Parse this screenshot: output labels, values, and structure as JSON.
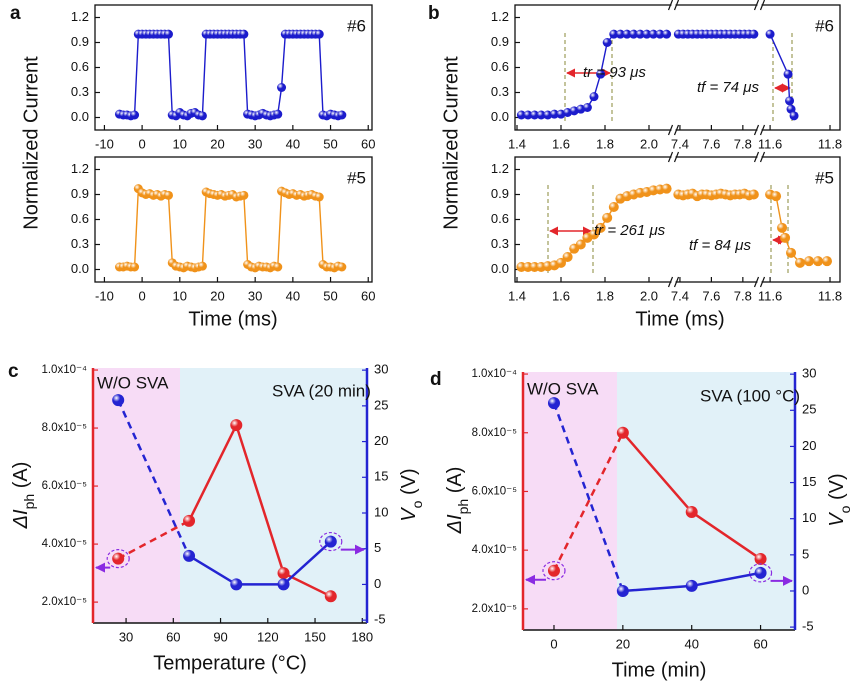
{
  "panel_labels": [
    "a",
    "b",
    "c",
    "d"
  ],
  "chart_data": [
    {
      "type": "line",
      "ylabel": "Normalized Current",
      "tag": "#6",
      "x": [
        -6,
        -5,
        -4,
        -3,
        -2,
        -1,
        0,
        1,
        2,
        3,
        4,
        5,
        6,
        7,
        8,
        9,
        10,
        11,
        12,
        13,
        14,
        15,
        16,
        17,
        18,
        19,
        20,
        21,
        22,
        23,
        24,
        25,
        26,
        27,
        28,
        29,
        30,
        31,
        32,
        33,
        34,
        35,
        36,
        37,
        38,
        39,
        40,
        41,
        42,
        43,
        44,
        45,
        46,
        47,
        48,
        49,
        50,
        51,
        52,
        53
      ],
      "series": [
        {
          "color": "#1c1ccc",
          "values": [
            0.04,
            0.03,
            0.03,
            0.02,
            0.03,
            1,
            1,
            1,
            1,
            1,
            1,
            1,
            1,
            1,
            0.03,
            0.02,
            0.06,
            0.03,
            0.02,
            0.05,
            0.06,
            0.03,
            0.02,
            1,
            1,
            1,
            1,
            1,
            1,
            1,
            1,
            1,
            1,
            1,
            0.04,
            0.03,
            0.02,
            0.03,
            0.05,
            0.03,
            0.02,
            0.03,
            0.04,
            0.36,
            1,
            1,
            1,
            1,
            1,
            1,
            1,
            1,
            1,
            1,
            0.03,
            0.02,
            0.04,
            0.03,
            0.02,
            0.03
          ]
        }
      ],
      "xlim": [
        -12.5,
        61
      ],
      "xticks": [
        -10,
        0,
        10,
        20,
        30,
        40,
        50,
        60
      ],
      "ylim": [
        -0.15,
        1.35
      ],
      "yticks": [
        {
          "value": 0,
          "label": "0.0"
        },
        0.3,
        0.6,
        0.9,
        1.2
      ]
    },
    {
      "type": "line",
      "xlabel": "Time (ms)",
      "tag": "#5",
      "x": [
        -6,
        -5,
        -4,
        -3,
        -2,
        -1,
        0,
        1,
        2,
        3,
        4,
        5,
        6,
        7,
        8,
        9,
        10,
        11,
        12,
        13,
        14,
        15,
        16,
        17,
        18,
        19,
        20,
        21,
        22,
        23,
        24,
        25,
        26,
        27,
        28,
        29,
        30,
        31,
        32,
        33,
        34,
        35,
        36,
        37,
        38,
        39,
        40,
        41,
        42,
        43,
        44,
        45,
        46,
        47,
        48,
        49,
        50,
        51,
        52,
        53
      ],
      "series": [
        {
          "color": "#f0921a",
          "values": [
            0.03,
            0.03,
            0.04,
            0.03,
            0.03,
            0.97,
            0.92,
            0.9,
            0.91,
            0.89,
            0.9,
            0.88,
            0.9,
            0.89,
            0.08,
            0.04,
            0.03,
            0.02,
            0.04,
            0.03,
            0.02,
            0.03,
            0.04,
            0.93,
            0.91,
            0.9,
            0.89,
            0.9,
            0.88,
            0.89,
            0.9,
            0.87,
            0.88,
            0.89,
            0.06,
            0.03,
            0.02,
            0.04,
            0.03,
            0.03,
            0.02,
            0.04,
            0.03,
            0.94,
            0.92,
            0.9,
            0.91,
            0.89,
            0.9,
            0.88,
            0.89,
            0.9,
            0.88,
            0.87,
            0.06,
            0.03,
            0.03,
            0.02,
            0.04,
            0.03
          ]
        }
      ],
      "xlim": [
        -12.5,
        61
      ],
      "xticks": [
        -10,
        0,
        10,
        20,
        30,
        40,
        50,
        60
      ],
      "ylim": [
        -0.15,
        1.35
      ],
      "yticks": [
        {
          "value": 0,
          "label": "0.0"
        },
        0.3,
        0.6,
        0.9,
        1.2
      ]
    },
    {
      "type": "line",
      "ylabel": "Normalized Current",
      "tag": "#6",
      "annotations": [
        "tr = 93 μs",
        "tf = 74 μs"
      ],
      "x_segments": [
        {
          "xlim": [
            1.4,
            2.1
          ],
          "xticks": [
            1.4,
            1.6,
            1.8,
            {
              "value": 2,
              "label": "2.0"
            }
          ]
        },
        {
          "xlim": [
            7.375,
            7.89
          ],
          "xticks": [
            7.4,
            7.6,
            7.8
          ]
        },
        {
          "xlim": [
            11.573,
            11.82
          ],
          "xticks": [
            11.6,
            11.8
          ]
        }
      ],
      "x": [
        1.42,
        1.45,
        1.48,
        1.51,
        1.54,
        1.57,
        1.6,
        1.63,
        1.66,
        1.69,
        1.72,
        1.75,
        1.78,
        1.81,
        1.84,
        1.87,
        1.9,
        1.93,
        1.96,
        1.99,
        2.02,
        2.05,
        2.08,
        7.39,
        7.42,
        7.45,
        7.48,
        7.51,
        7.54,
        7.57,
        7.6,
        7.63,
        7.66,
        7.69,
        7.72,
        7.75,
        7.78,
        7.81,
        7.84,
        7.87,
        11.6,
        11.66,
        11.665,
        11.67,
        11.68
      ],
      "series": [
        {
          "color": "#1c1ccc",
          "values": [
            0.03,
            0.03,
            0.03,
            0.03,
            0.03,
            0.04,
            0.04,
            0.06,
            0.08,
            0.1,
            0.12,
            0.25,
            0.52,
            0.9,
            1,
            1,
            1,
            1,
            1,
            1,
            1,
            1,
            1,
            1,
            1,
            1,
            1,
            1,
            1,
            1,
            1,
            1,
            1,
            1,
            1,
            1,
            1,
            1,
            1,
            1,
            1,
            0.52,
            0.2,
            0.1,
            0.02
          ]
        }
      ],
      "ylim": [
        -0.15,
        1.35
      ],
      "yticks": [
        {
          "value": 0,
          "label": "0.0"
        },
        0.3,
        0.6,
        0.9,
        1.2
      ]
    },
    {
      "type": "line",
      "xlabel": "Time (ms)",
      "tag": "#5",
      "annotations": [
        "tr = 261 μs",
        "tf = 84 μs"
      ],
      "x_segments": [
        {
          "xlim": [
            1.4,
            2.1
          ],
          "xticks": [
            1.4,
            1.6,
            1.8,
            {
              "value": 2,
              "label": "2.0"
            }
          ]
        },
        {
          "xlim": [
            7.375,
            7.89
          ],
          "xticks": [
            7.4,
            7.6,
            7.8
          ]
        },
        {
          "xlim": [
            11.573,
            11.82
          ],
          "xticks": [
            11.6,
            11.8
          ]
        }
      ],
      "x": [
        1.42,
        1.45,
        1.48,
        1.51,
        1.54,
        1.57,
        1.6,
        1.63,
        1.66,
        1.69,
        1.72,
        1.75,
        1.78,
        1.81,
        1.84,
        1.87,
        1.9,
        1.93,
        1.96,
        1.99,
        2.02,
        2.05,
        2.08,
        7.39,
        7.42,
        7.45,
        7.48,
        7.51,
        7.54,
        7.57,
        7.6,
        7.63,
        7.66,
        7.69,
        7.72,
        7.75,
        7.78,
        7.81,
        7.84,
        7.87,
        11.6,
        11.62,
        11.64,
        11.65,
        11.67,
        11.7,
        11.73,
        11.76,
        11.79
      ],
      "series": [
        {
          "color": "#f0921a",
          "values": [
            0.03,
            0.03,
            0.03,
            0.03,
            0.04,
            0.05,
            0.08,
            0.15,
            0.25,
            0.3,
            0.38,
            0.42,
            0.5,
            0.62,
            0.75,
            0.85,
            0.88,
            0.9,
            0.92,
            0.93,
            0.95,
            0.96,
            0.97,
            0.9,
            0.89,
            0.9,
            0.91,
            0.88,
            0.9,
            0.9,
            0.89,
            0.9,
            0.91,
            0.9,
            0.89,
            0.9,
            0.9,
            0.91,
            0.89,
            0.9,
            0.9,
            0.88,
            0.5,
            0.38,
            0.2,
            0.08,
            0.1,
            0.1,
            0.1
          ]
        }
      ],
      "ylim": [
        -0.15,
        1.35
      ],
      "yticks": [
        {
          "value": 0,
          "label": "0.0"
        },
        0.3,
        0.6,
        0.9,
        1.2
      ]
    },
    {
      "type": "line",
      "xlabel": "Temperature (°C)",
      "ylabel": [
        "ΔI",
        "ph",
        " (A)"
      ],
      "y2label": [
        "V",
        "o",
        " (V)"
      ],
      "annotations": [
        "W/O SVA",
        "SVA (20 min)"
      ],
      "x": [
        25,
        70,
        100,
        130,
        160
      ],
      "series": [
        {
          "color": "#e3262b",
          "values": [
            3.5e-05,
            4.8e-05,
            8.1e-05,
            3e-05,
            2.2e-05
          ]
        },
        {
          "color": "#2424d2",
          "axis": "y2",
          "values": [
            25.8,
            4,
            0,
            0,
            6
          ]
        }
      ],
      "xlim": [
        9,
        183
      ],
      "xticks": [
        30,
        60,
        90,
        120,
        150,
        180
      ],
      "ylim": [
        1.28e-05,
        0.0001007
      ],
      "yticks": [
        {
          "value": 2e-05,
          "label": "2.0x10⁻⁵"
        },
        {
          "value": 4e-05,
          "label": "4.0x10⁻⁵"
        },
        {
          "value": 6e-05,
          "label": "6.0x10⁻⁵"
        },
        {
          "value": 8e-05,
          "label": "8.0x10⁻⁵"
        },
        {
          "value": 0.0001,
          "label": "1.0x10⁻⁴"
        }
      ],
      "y2lim": [
        -5.4,
        30.3
      ],
      "y2ticks": [
        -5,
        0,
        5,
        10,
        15,
        20,
        25,
        30
      ]
    },
    {
      "type": "line",
      "xlabel": "Time (min)",
      "ylabel": [
        "ΔI",
        "ph",
        " (A)"
      ],
      "y2label": [
        "V",
        "o",
        " (V)"
      ],
      "annotations": [
        "W/O SVA",
        "SVA (100 °C)"
      ],
      "x": [
        0,
        20,
        40,
        60
      ],
      "series": [
        {
          "color": "#e3262b",
          "values": [
            3.3e-05,
            8e-05,
            5.3e-05,
            3.7e-05
          ]
        },
        {
          "color": "#2424d2",
          "axis": "y2",
          "values": [
            26,
            0,
            0.7,
            2.5
          ]
        }
      ],
      "xlim": [
        -9,
        70
      ],
      "xticks": [
        0,
        20,
        40,
        60
      ],
      "ylim": [
        1.28e-05,
        0.0001007
      ],
      "yticks": [
        {
          "value": 2e-05,
          "label": "2.0x10⁻⁵"
        },
        {
          "value": 4e-05,
          "label": "4.0x10⁻⁵"
        },
        {
          "value": 6e-05,
          "label": "6.0x10⁻⁵"
        },
        {
          "value": 8e-05,
          "label": "8.0x10⁻⁵"
        },
        {
          "value": 0.0001,
          "label": "1.0x10⁻⁴"
        }
      ],
      "y2lim": [
        -5.4,
        30.3
      ],
      "y2ticks": [
        -5,
        0,
        5,
        10,
        15,
        20,
        25,
        30
      ]
    }
  ]
}
